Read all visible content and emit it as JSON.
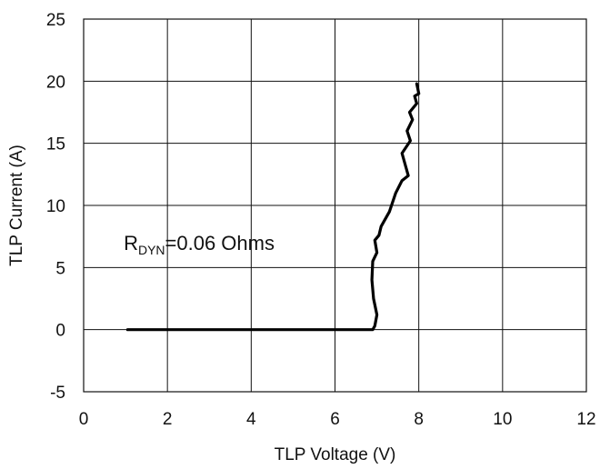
{
  "chart_data": {
    "type": "line",
    "xlabel": "TLP Voltage (V)",
    "ylabel": "TLP Current (A)",
    "xlim": [
      0,
      12
    ],
    "ylim": [
      -5,
      25
    ],
    "x_ticks": [
      0,
      2,
      4,
      6,
      8,
      10,
      12
    ],
    "y_ticks": [
      -5,
      0,
      5,
      10,
      15,
      20,
      25
    ],
    "x_tick_labels": [
      "0",
      "2",
      "4",
      "6",
      "8",
      "10",
      "12"
    ],
    "y_tick_labels": [
      "-5",
      "0",
      "5",
      "10",
      "15",
      "20",
      "25"
    ],
    "grid": true,
    "legend": "none",
    "annotation": {
      "prefix": "R",
      "subscript": "DYN",
      "suffix": "=0.06  Ohms",
      "x": 1.0,
      "y": 7.0
    },
    "series": [
      {
        "x": [
          1.05,
          6.9,
          6.95,
          7.0,
          6.92,
          6.88,
          6.9,
          7.0,
          6.95,
          7.05,
          7.1,
          7.3,
          7.45,
          7.6,
          7.75,
          7.7,
          7.6,
          7.8,
          7.72,
          7.85,
          7.78,
          7.95,
          7.9,
          8.0,
          7.95
        ],
        "y": [
          0,
          0,
          0.3,
          1.2,
          2.5,
          4.0,
          5.5,
          6.2,
          7.2,
          7.6,
          8.3,
          9.5,
          11.0,
          12.0,
          12.4,
          13.0,
          14.2,
          15.2,
          16.0,
          16.9,
          17.5,
          18.2,
          18.8,
          19.0,
          19.8
        ],
        "color": "#000000"
      }
    ]
  }
}
